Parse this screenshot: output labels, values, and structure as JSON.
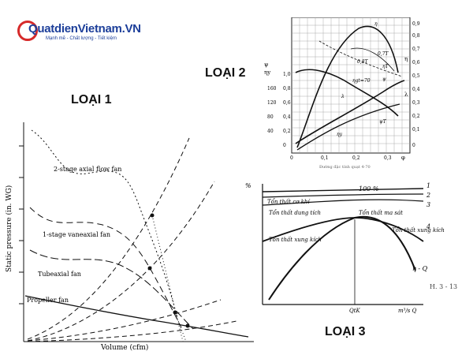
{
  "logo": {
    "name": "QuatdienVietnam.VN",
    "tagline": "Mạnh mẽ - Chất lượng - Tiết kiệm"
  },
  "labels": {
    "type1": "LOẠI 1",
    "type2": "LOẠI 2",
    "type3": "LOẠI 3"
  },
  "panel1": {
    "ylabel": "Static pressure (in. WG)",
    "xlabel": "Volume (cfm)",
    "curves": [
      "2-stage axial flow fan",
      "1-stage vaneaxial fan",
      "Tubeaxial fan",
      "Propeller fan"
    ]
  },
  "panel2": {
    "caption": "Đường đặc tính quạt 4-70",
    "left_labels": [
      "ψ",
      "ηy"
    ],
    "left_ticks_a": [
      "1,0",
      "0,8",
      "0,6",
      "0,4",
      "0,2",
      "0"
    ],
    "left_ticks_b": [
      "160",
      "120",
      "80",
      "40"
    ],
    "right_ticks": [
      "0,9",
      "0,8",
      "0,7",
      "0,6",
      "0,5",
      "0,4",
      "0,3",
      "0,2",
      "0,1",
      "0"
    ],
    "right_axis_labels": [
      "η",
      "λ"
    ],
    "x_ticks": [
      "0",
      "0,1",
      "0,2",
      "0,3",
      "φ"
    ],
    "curve_labels": [
      "η",
      "ηT",
      "ψ",
      "ηy",
      "λ",
      "ηgt=70",
      "ψT",
      "0,8T",
      "0,7T"
    ]
  },
  "panel3": {
    "yaxis": "%",
    "hundred": "100 %",
    "line_labels": [
      "Tổn thất cơ khí",
      "Tổn thất dung tích",
      "Tổn thất ma sát",
      "Tổn thất xung kích"
    ],
    "numbers": [
      "1",
      "2",
      "3",
      "4"
    ],
    "eta_q": "η - Q",
    "qtk": "QtK",
    "x_unit": "m³/s  Q",
    "figure_ref": "H. 3 - 13"
  }
}
